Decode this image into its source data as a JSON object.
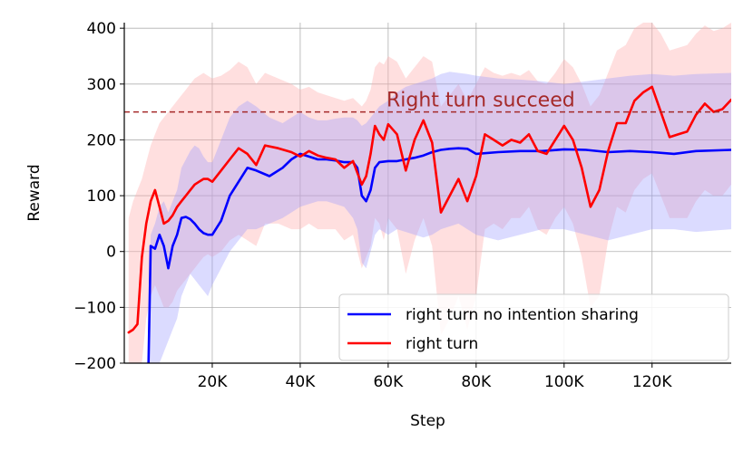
{
  "chart_data": {
    "type": "line",
    "title": "",
    "xlabel": "Step",
    "ylabel": "Reward",
    "xlim": [
      0,
      138000
    ],
    "ylim": [
      -200,
      410
    ],
    "x_ticks": [
      20000,
      40000,
      60000,
      80000,
      100000,
      120000
    ],
    "x_tick_labels": [
      "20K",
      "40K",
      "60K",
      "80K",
      "100K",
      "120K"
    ],
    "y_ticks": [
      -200,
      -100,
      0,
      100,
      200,
      300,
      400
    ],
    "y_tick_labels": [
      "−200",
      "−100",
      "0",
      "100",
      "200",
      "300",
      "400"
    ],
    "grid": true,
    "legend_position": "lower-right",
    "annotation": {
      "text": "Right turn succeed",
      "y": 250,
      "color": "#a52a2a",
      "line_style": "dashed"
    },
    "series": [
      {
        "name": "right turn no intention sharing",
        "color": "#0000ff",
        "band_color": "#9999ff",
        "x": [
          5500,
          6000,
          7000,
          8000,
          9000,
          10000,
          11000,
          12000,
          13000,
          14000,
          15000,
          16000,
          17000,
          18000,
          19000,
          20000,
          22000,
          24000,
          26000,
          28000,
          30000,
          33000,
          36000,
          38000,
          40000,
          42000,
          44000,
          46000,
          48000,
          50000,
          52000,
          53000,
          54000,
          55000,
          56000,
          57000,
          58000,
          60000,
          62000,
          64000,
          66000,
          68000,
          70000,
          72000,
          74000,
          76000,
          78000,
          80000,
          85000,
          90000,
          95000,
          100000,
          105000,
          110000,
          115000,
          120000,
          125000,
          130000,
          138000
        ],
        "values": [
          -200,
          10,
          5,
          30,
          10,
          -30,
          10,
          30,
          60,
          62,
          58,
          50,
          40,
          33,
          30,
          30,
          55,
          100,
          125,
          150,
          145,
          135,
          150,
          165,
          175,
          170,
          165,
          165,
          163,
          160,
          160,
          150,
          100,
          90,
          110,
          150,
          160,
          162,
          162,
          165,
          168,
          172,
          178,
          182,
          184,
          185,
          184,
          175,
          178,
          180,
          180,
          183,
          182,
          178,
          180,
          178,
          175,
          180,
          182
        ],
        "upper": [
          -200,
          30,
          50,
          80,
          90,
          70,
          90,
          110,
          150,
          165,
          180,
          190,
          185,
          170,
          160,
          160,
          200,
          240,
          260,
          270,
          260,
          240,
          230,
          240,
          250,
          240,
          235,
          235,
          238,
          240,
          240,
          235,
          225,
          230,
          240,
          250,
          260,
          270,
          285,
          295,
          300,
          305,
          310,
          318,
          322,
          320,
          318,
          315,
          310,
          308,
          305,
          300,
          305,
          310,
          315,
          318,
          315,
          318,
          320
        ],
        "lower": [
          -200,
          -200,
          -200,
          -200,
          -180,
          -160,
          -140,
          -120,
          -80,
          -60,
          -40,
          -50,
          -60,
          -70,
          -80,
          -60,
          -30,
          0,
          20,
          40,
          40,
          50,
          60,
          70,
          80,
          85,
          90,
          90,
          85,
          80,
          60,
          40,
          -20,
          -30,
          0,
          30,
          40,
          30,
          40,
          35,
          30,
          25,
          30,
          40,
          45,
          50,
          40,
          30,
          20,
          30,
          40,
          40,
          30,
          20,
          30,
          40,
          40,
          35,
          40
        ]
      },
      {
        "name": "right turn",
        "color": "#ff0000",
        "band_color": "#ffb0b0",
        "x": [
          1000,
          2000,
          3000,
          4000,
          5000,
          6000,
          7000,
          8000,
          9000,
          10000,
          11000,
          12000,
          13000,
          14000,
          15000,
          16000,
          17000,
          18000,
          19000,
          20000,
          22000,
          24000,
          26000,
          28000,
          30000,
          32000,
          35000,
          38000,
          40000,
          42000,
          44000,
          46000,
          48000,
          50000,
          52000,
          54000,
          55000,
          56000,
          57000,
          58000,
          59000,
          60000,
          62000,
          64000,
          66000,
          68000,
          70000,
          72000,
          74000,
          76000,
          78000,
          80000,
          82000,
          84000,
          86000,
          88000,
          90000,
          92000,
          94000,
          96000,
          98000,
          100000,
          102000,
          104000,
          106000,
          108000,
          110000,
          112000,
          114000,
          116000,
          118000,
          120000,
          122000,
          124000,
          126000,
          128000,
          130000,
          132000,
          134000,
          136000,
          138000
        ],
        "values": [
          -145,
          -140,
          -130,
          -10,
          50,
          90,
          110,
          80,
          50,
          55,
          65,
          80,
          90,
          100,
          110,
          120,
          125,
          130,
          130,
          125,
          145,
          165,
          185,
          175,
          155,
          190,
          185,
          178,
          170,
          180,
          172,
          168,
          165,
          150,
          162,
          120,
          135,
          175,
          225,
          210,
          200,
          228,
          210,
          145,
          200,
          235,
          195,
          70,
          100,
          130,
          90,
          135,
          210,
          200,
          190,
          200,
          195,
          210,
          180,
          175,
          200,
          225,
          200,
          150,
          80,
          110,
          180,
          230,
          230,
          270,
          285,
          295,
          250,
          205,
          210,
          215,
          245,
          265,
          250,
          255,
          272
        ],
        "upper": [
          60,
          90,
          110,
          130,
          160,
          190,
          210,
          230,
          240,
          250,
          260,
          270,
          280,
          290,
          300,
          310,
          315,
          320,
          315,
          310,
          315,
          325,
          340,
          330,
          300,
          320,
          310,
          300,
          290,
          295,
          285,
          280,
          275,
          270,
          275,
          260,
          270,
          290,
          330,
          340,
          335,
          350,
          340,
          310,
          330,
          350,
          340,
          260,
          280,
          300,
          270,
          300,
          330,
          320,
          315,
          320,
          315,
          325,
          305,
          300,
          320,
          345,
          330,
          300,
          260,
          280,
          320,
          360,
          370,
          400,
          410,
          410,
          390,
          360,
          365,
          370,
          390,
          405,
          395,
          400,
          410
        ],
        "lower": [
          -200,
          -200,
          -200,
          -200,
          -120,
          -80,
          -60,
          -80,
          -100,
          -100,
          -90,
          -70,
          -60,
          -50,
          -40,
          -30,
          -20,
          -10,
          -5,
          -10,
          0,
          20,
          30,
          20,
          10,
          50,
          50,
          40,
          40,
          50,
          40,
          40,
          40,
          20,
          30,
          -30,
          -10,
          10,
          60,
          50,
          20,
          60,
          40,
          -40,
          20,
          60,
          10,
          -150,
          -120,
          -80,
          -140,
          -80,
          40,
          50,
          40,
          60,
          60,
          80,
          40,
          30,
          60,
          80,
          50,
          -10,
          -100,
          -80,
          20,
          80,
          70,
          110,
          130,
          140,
          100,
          60,
          60,
          60,
          90,
          110,
          100,
          100,
          120
        ]
      }
    ]
  }
}
